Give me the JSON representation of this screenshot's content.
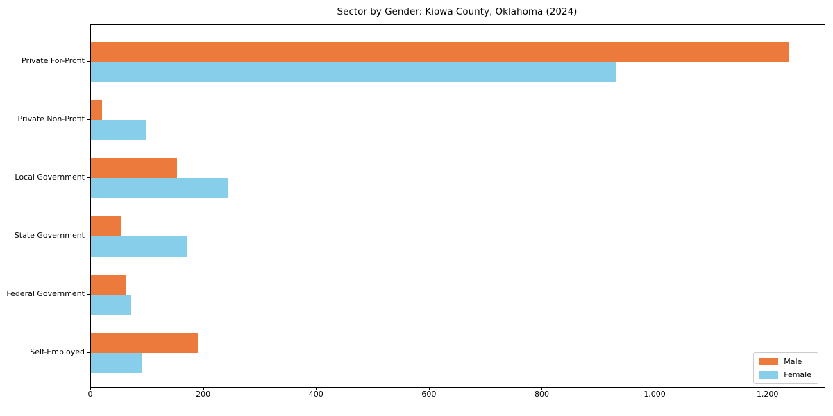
{
  "page": {
    "background_color": "#ffffff",
    "axis_color": "#000000",
    "legend_border_color": "#cccccc"
  },
  "chart_data": {
    "type": "bar",
    "orientation": "horizontal",
    "title": "Sector by Gender: Kiowa County, Oklahoma (2024)",
    "categories": [
      "Private For-Profit",
      "Private Non-Profit",
      "Local Government",
      "State Government",
      "Federal Government",
      "Self-Employed"
    ],
    "series": [
      {
        "name": "Male",
        "color": "#ec7a3d",
        "values": [
          1236,
          20,
          153,
          54,
          63,
          189
        ]
      },
      {
        "name": "Female",
        "color": "#87ceeb",
        "values": [
          931,
          97,
          243,
          170,
          70,
          91
        ]
      }
    ],
    "xlabel": "",
    "ylabel": "",
    "xlim": [
      0,
      1300
    ],
    "x_tick_values": [
      0,
      200,
      400,
      600,
      800,
      1000,
      1200
    ],
    "x_tick_labels": [
      "0",
      "200",
      "400",
      "600",
      "800",
      "1,000",
      "1,200"
    ],
    "grid": false,
    "legend_position": "lower right"
  }
}
